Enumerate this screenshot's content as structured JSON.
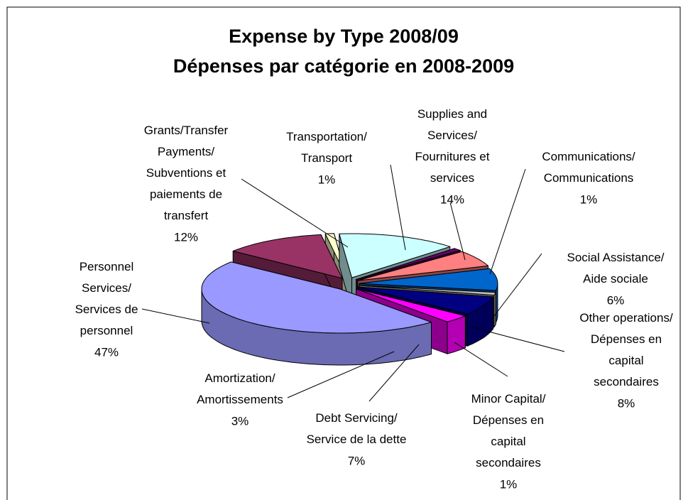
{
  "chart_data": {
    "type": "pie3d",
    "title": "Expense by Type 2008/09\nDépenses par catégorie en 2008-2009",
    "categories": [
      "Grants/Transfer\nPayments/\nSubventions et\npaiements de\ntransfert",
      "Transportation/\nTransport",
      "Supplies and\nServices/\nFournitures et\nservices",
      "Communications/\nCommunications",
      "Social Assistance/\nAide sociale",
      "Other operations/\nDépenses en\ncapital\nsecondaires",
      "Minor Capital/\nDépenses en\ncapital\nsecondaires",
      "Debt Servicing/\nService de la dette",
      "Amortization/\nAmortissements",
      "Personnel\nServices/\nServices de\npersonnel"
    ],
    "values": [
      12,
      1,
      14,
      1,
      6,
      8,
      1,
      7,
      3,
      47
    ],
    "value_labels": [
      "12%",
      "1%",
      "14%",
      "1%",
      "6%",
      "8%",
      "1%",
      "7%",
      "3%",
      "47%"
    ],
    "colors": [
      "#993366",
      "#ffffcc",
      "#ccffff",
      "#660066",
      "#ff8080",
      "#0066cc",
      "#c0c0c0",
      "#000080",
      "#ff00ff",
      "#9999ff"
    ]
  }
}
